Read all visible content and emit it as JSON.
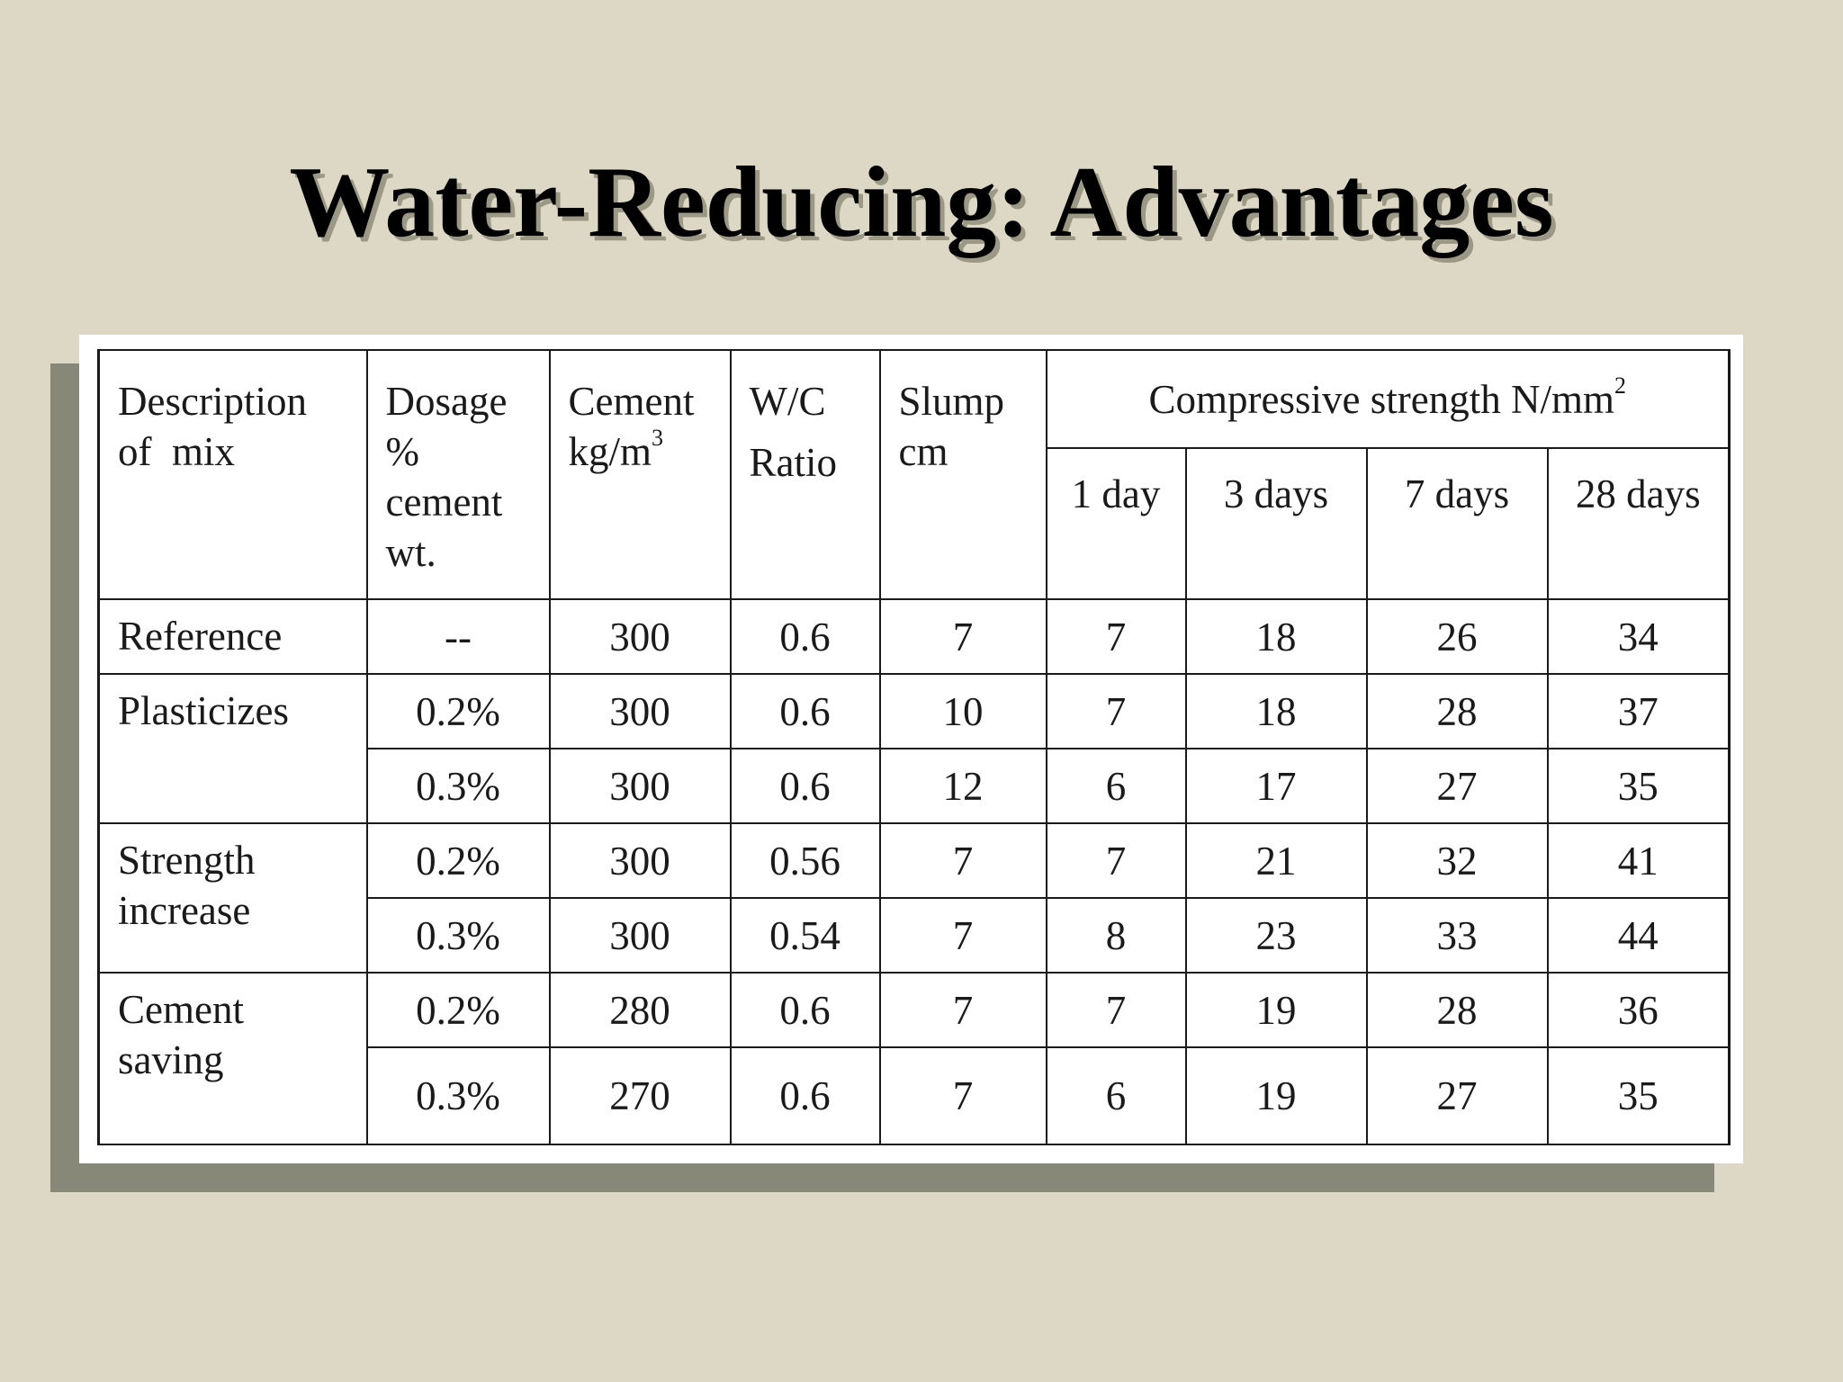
{
  "title": "Water-Reducing: Advantages",
  "table": {
    "headers": {
      "description": [
        "Description",
        "of  mix"
      ],
      "dosage": [
        "Dosage",
        "%",
        "cement",
        "wt."
      ],
      "cement": [
        "Cement",
        "kg/m"
      ],
      "cement_sup": "3",
      "wc": [
        "W/C",
        "Ratio"
      ],
      "slump": [
        "Slump",
        "cm"
      ],
      "strength_group": "Compressive strength N/mm",
      "strength_sup": "2",
      "strength_days": [
        "1 day",
        "3 days",
        "7 days",
        "28 days"
      ]
    },
    "groups": [
      {
        "description": "Reference",
        "rows": [
          {
            "dosage": "--",
            "cement": "300",
            "wc": "0.6",
            "slump": "7",
            "d1": "7",
            "d3": "18",
            "d7": "26",
            "d28": "34"
          }
        ]
      },
      {
        "description": "Plasticizes",
        "rows": [
          {
            "dosage": "0.2%",
            "cement": "300",
            "wc": "0.6",
            "slump": "10",
            "d1": "7",
            "d3": "18",
            "d7": "28",
            "d28": "37"
          },
          {
            "dosage": "0.3%",
            "cement": "300",
            "wc": "0.6",
            "slump": "12",
            "d1": "6",
            "d3": "17",
            "d7": "27",
            "d28": "35"
          }
        ]
      },
      {
        "description": "Strength increase",
        "description_lines": [
          "Strength",
          "increase"
        ],
        "rows": [
          {
            "dosage": "0.2%",
            "cement": "300",
            "wc": "0.56",
            "slump": "7",
            "d1": "7",
            "d3": "21",
            "d7": "32",
            "d28": "41"
          },
          {
            "dosage": "0.3%",
            "cement": "300",
            "wc": "0.54",
            "slump": "7",
            "d1": "8",
            "d3": "23",
            "d7": "33",
            "d28": "44"
          }
        ]
      },
      {
        "description": "Cement saving",
        "description_lines": [
          "Cement",
          "saving"
        ],
        "rows": [
          {
            "dosage": "0.2%",
            "cement": "280",
            "wc": "0.6",
            "slump": "7",
            "d1": "7",
            "d3": "19",
            "d7": "28",
            "d28": "36"
          },
          {
            "dosage": "0.3%",
            "cement": "270",
            "wc": "0.6",
            "slump": "7",
            "d1": "6",
            "d3": "19",
            "d7": "27",
            "d28": "35"
          }
        ]
      }
    ]
  }
}
